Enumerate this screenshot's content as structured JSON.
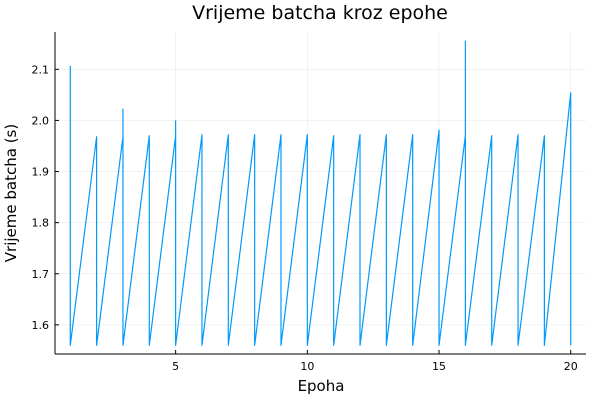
{
  "chart_data": {
    "type": "line",
    "title": "Vrijeme batcha kroz epohe",
    "xlabel": "Epoha",
    "ylabel": "Vrijeme batcha (s)",
    "xlim": [
      0.42,
      20.58
    ],
    "ylim": [
      1.543,
      2.173
    ],
    "xticks": [
      5,
      10,
      15,
      20
    ],
    "yticks": [
      1.6,
      1.7,
      1.8,
      1.9,
      2.0,
      2.1
    ],
    "xtick_labels": [
      "5",
      "10",
      "15",
      "20"
    ],
    "ytick_labels": [
      "1.6",
      "1.7",
      "1.8",
      "1.9",
      "2.0",
      "2.1"
    ],
    "grid": true,
    "legend": "none",
    "series_color": "#009AF9",
    "series": [
      {
        "x": [
          1,
          1,
          1,
          2,
          2,
          3,
          3,
          3,
          4,
          4,
          5,
          5,
          5,
          6,
          6,
          7,
          7,
          8,
          8,
          9,
          9,
          10,
          10,
          11,
          11,
          12,
          12,
          13,
          13,
          14,
          14,
          15,
          15,
          16,
          16,
          17,
          17,
          18,
          18,
          19,
          19,
          20,
          20
        ],
        "y": [
          2.107,
          1.56,
          1.56,
          1.968,
          1.56,
          1.968,
          2.022,
          1.56,
          1.97,
          1.56,
          1.97,
          1.999,
          1.56,
          1.972,
          1.56,
          1.972,
          1.56,
          1.972,
          1.56,
          1.972,
          1.56,
          1.972,
          1.56,
          1.97,
          1.56,
          1.972,
          1.56,
          1.972,
          1.56,
          1.972,
          1.56,
          1.981,
          1.56,
          1.97,
          1.56,
          1.97,
          1.56,
          1.972,
          1.56,
          1.97,
          1.56,
          2.054,
          1.56
        ]
      },
      {
        "x": [
          16,
          16
        ],
        "y": [
          1.97,
          2.156
        ]
      }
    ]
  }
}
